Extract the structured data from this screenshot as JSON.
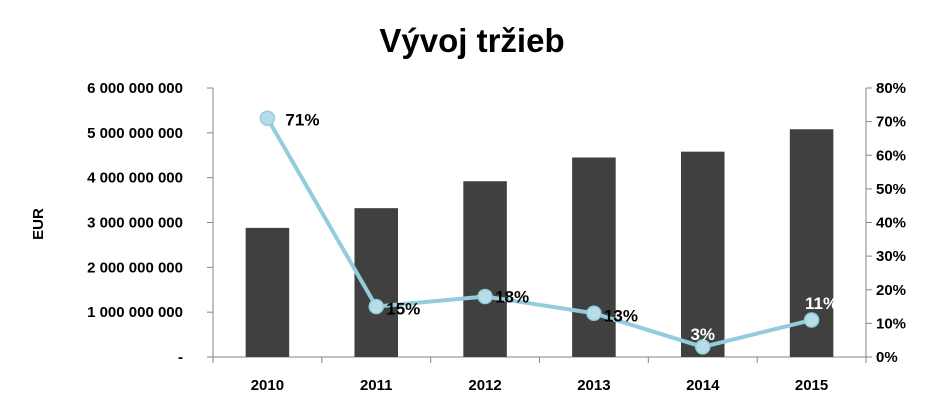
{
  "chart_data": {
    "type": "bar",
    "title": "Vývoj tržieb",
    "ylabel": "EUR",
    "y2label": "",
    "categories": [
      "2010",
      "2011",
      "2012",
      "2013",
      "2014",
      "2015"
    ],
    "ylim": [
      0,
      6000000000
    ],
    "y_ticks": [
      "-",
      "1 000 000 000",
      "2 000 000 000",
      "3 000 000 000",
      "4 000 000 000",
      "5 000 000 000",
      "6 000 000 000"
    ],
    "y2lim": [
      0,
      80
    ],
    "y2_ticks": [
      "0%",
      "10%",
      "20%",
      "30%",
      "40%",
      "50%",
      "60%",
      "70%",
      "80%"
    ],
    "grid": false,
    "legend": "none",
    "series": [
      {
        "kind": "bar",
        "axis": "left",
        "color": "#404040",
        "values": [
          2880000000,
          3320000000,
          3920000000,
          4450000000,
          4580000000,
          5080000000
        ]
      },
      {
        "kind": "line",
        "axis": "right",
        "color": "#93CDDD",
        "marker_fill": "#B7DEE8",
        "values": [
          71,
          15,
          18,
          13,
          3,
          11
        ],
        "labels": [
          "71%",
          "15%",
          "18%",
          "13%",
          "3%",
          "11%"
        ]
      }
    ]
  }
}
